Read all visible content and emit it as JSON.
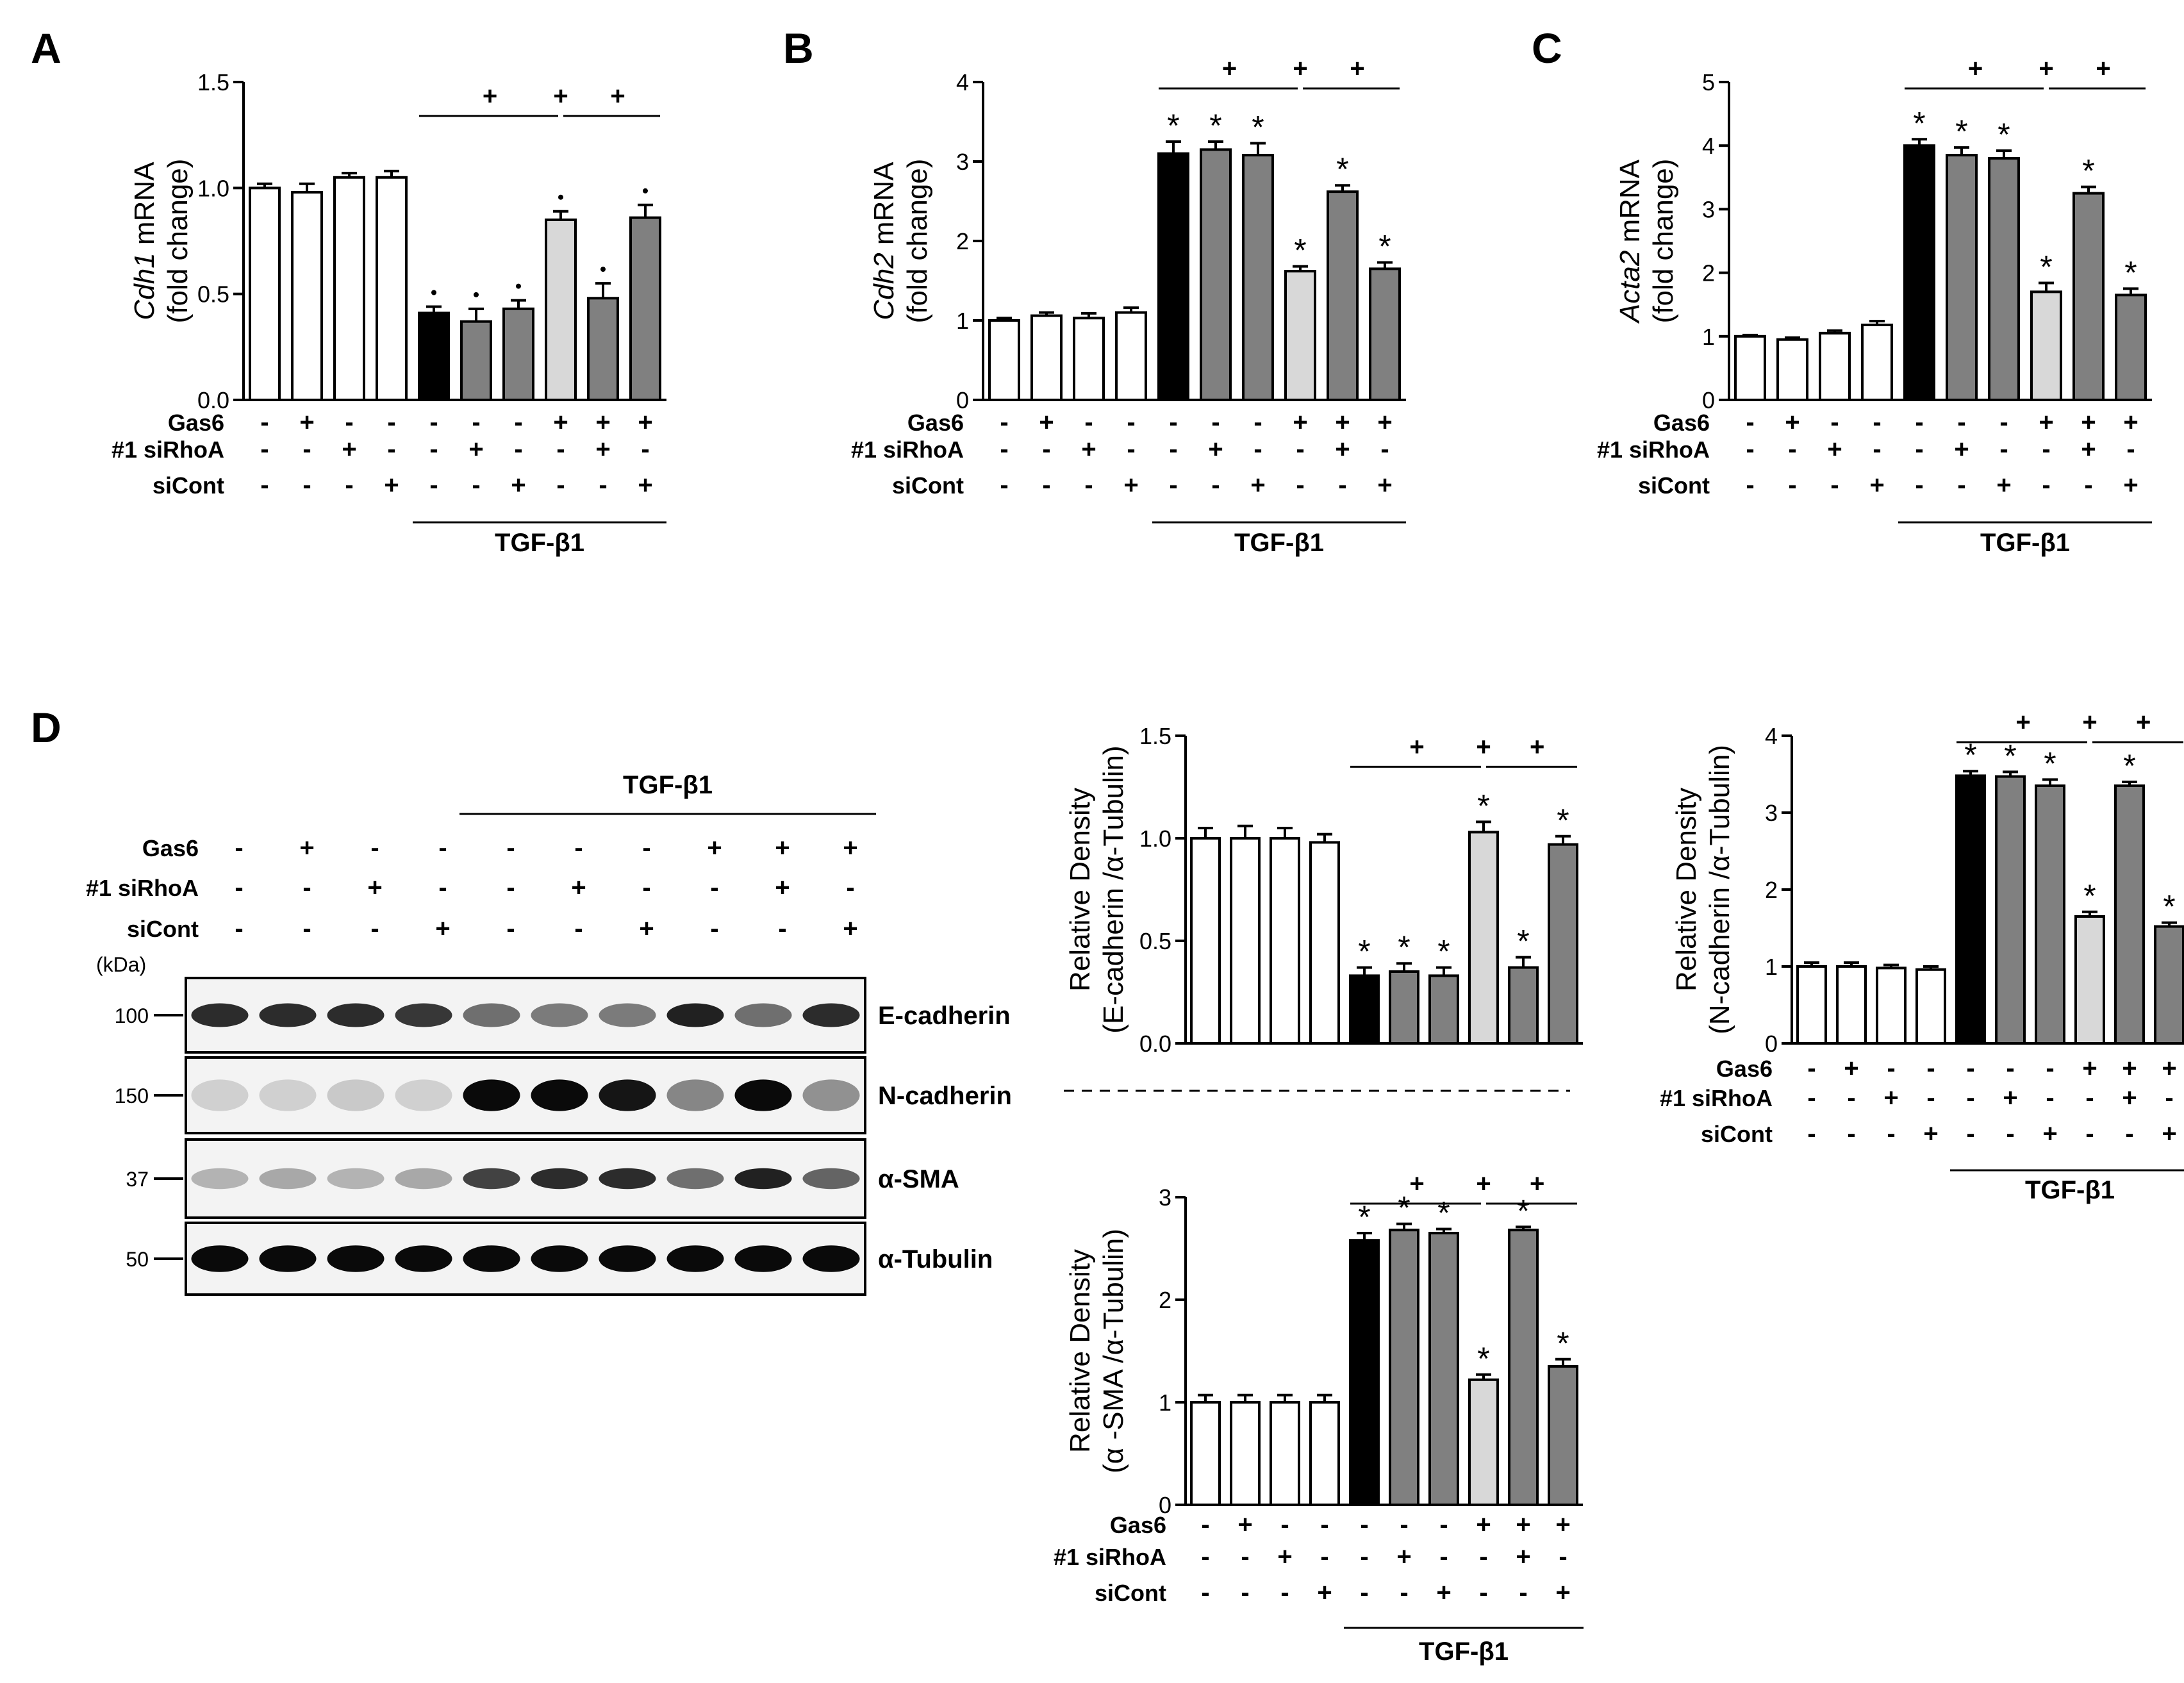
{
  "panel_labels": [
    "A",
    "B",
    "C",
    "D"
  ],
  "treatment_rows": {
    "gas6": {
      "label": "Gas6",
      "signs": [
        "-",
        "+",
        "-",
        "-",
        "-",
        "-",
        "-",
        "+",
        "+",
        "+"
      ]
    },
    "sirhoa": {
      "label": "#1 siRhoA",
      "signs": [
        "-",
        "-",
        "+",
        "-",
        "-",
        "+",
        "-",
        "-",
        "+",
        "-"
      ]
    },
    "sicont": {
      "label": "siCont",
      "signs": [
        "-",
        "-",
        "-",
        "+",
        "-",
        "-",
        "+",
        "-",
        "-",
        "+"
      ]
    },
    "tgf_label": "TGF-β1"
  },
  "bar_colors": {
    "white": "#ffffff",
    "black": "#000000",
    "light": "#d8d8d8",
    "dark": "#808080"
  },
  "bar_fills": [
    "white",
    "white",
    "white",
    "white",
    "black",
    "dark",
    "dark",
    "light",
    "dark",
    "dark"
  ],
  "comparison_marker": "+",
  "significance_marker": "*",
  "chart_data": [
    {
      "panel": "A",
      "type": "bar",
      "ylabel_gene": "Cdh1",
      "ylabel_suffix": " mRNA",
      "ylabel_line2": "(fold change)",
      "ylim": [
        0,
        1.5
      ],
      "yticks": [
        "0.0",
        "0.5",
        "1.0",
        "1.5"
      ],
      "ytick_values": [
        0,
        0.5,
        1.0,
        1.5
      ],
      "values": [
        1.0,
        0.98,
        1.05,
        1.05,
        0.41,
        0.37,
        0.43,
        0.85,
        0.48,
        0.86
      ],
      "errors": [
        0.02,
        0.04,
        0.02,
        0.03,
        0.03,
        0.06,
        0.04,
        0.04,
        0.07,
        0.06
      ],
      "stars": [
        false,
        false,
        false,
        false,
        true,
        true,
        true,
        true,
        true,
        true
      ],
      "star_style": "dot"
    },
    {
      "panel": "B",
      "type": "bar",
      "ylabel_gene": "Cdh2",
      "ylabel_suffix": "  mRNA",
      "ylabel_line2": "(fold change)",
      "ylim": [
        0,
        4
      ],
      "yticks": [
        "0",
        "1",
        "2",
        "3",
        "4"
      ],
      "ytick_values": [
        0,
        1,
        2,
        3,
        4
      ],
      "values": [
        1.0,
        1.06,
        1.03,
        1.1,
        3.1,
        3.15,
        3.08,
        1.62,
        2.62,
        1.65
      ],
      "errors": [
        0.03,
        0.04,
        0.06,
        0.06,
        0.15,
        0.1,
        0.15,
        0.06,
        0.08,
        0.08
      ],
      "stars": [
        false,
        false,
        false,
        false,
        true,
        true,
        true,
        true,
        true,
        true
      ],
      "star_style": "star"
    },
    {
      "panel": "C",
      "type": "bar",
      "ylabel_gene": "Acta2",
      "ylabel_suffix": "  mRNA",
      "ylabel_line2": "(fold change)",
      "ylim": [
        0,
        5
      ],
      "yticks": [
        "0",
        "1",
        "2",
        "3",
        "4",
        "5"
      ],
      "ytick_values": [
        0,
        1,
        2,
        3,
        4,
        5
      ],
      "values": [
        1.0,
        0.95,
        1.05,
        1.18,
        4.0,
        3.85,
        3.8,
        1.7,
        3.25,
        1.65
      ],
      "errors": [
        0.02,
        0.03,
        0.04,
        0.06,
        0.1,
        0.12,
        0.12,
        0.14,
        0.1,
        0.1
      ],
      "stars": [
        false,
        false,
        false,
        false,
        true,
        true,
        true,
        true,
        true,
        true
      ],
      "star_style": "star"
    },
    {
      "panel": "D-E-cadherin",
      "type": "bar",
      "ylabel_line1": "Relative Density",
      "ylabel_line2": "(E-cadherin /α-Tubulin)",
      "ylim": [
        0,
        1.5
      ],
      "yticks": [
        "0.0",
        "0.5",
        "1.0",
        "1.5"
      ],
      "ytick_values": [
        0,
        0.5,
        1.0,
        1.5
      ],
      "values": [
        1.0,
        1.0,
        1.0,
        0.98,
        0.33,
        0.35,
        0.33,
        1.03,
        0.37,
        0.97
      ],
      "errors": [
        0.05,
        0.06,
        0.05,
        0.04,
        0.04,
        0.04,
        0.04,
        0.05,
        0.05,
        0.04
      ],
      "stars": [
        false,
        false,
        false,
        false,
        true,
        true,
        true,
        true,
        true,
        true
      ],
      "star_style": "star"
    },
    {
      "panel": "D-N-cadherin",
      "type": "bar",
      "ylabel_line1": "Relative Density",
      "ylabel_line2": "(N-cadherin /α-Tubulin)",
      "ylim": [
        0,
        4
      ],
      "yticks": [
        "0",
        "1",
        "2",
        "3",
        "4"
      ],
      "ytick_values": [
        0,
        1,
        2,
        3,
        4
      ],
      "values": [
        1.0,
        1.0,
        0.98,
        0.96,
        3.48,
        3.47,
        3.35,
        1.65,
        3.35,
        1.52
      ],
      "errors": [
        0.05,
        0.05,
        0.04,
        0.04,
        0.06,
        0.06,
        0.08,
        0.06,
        0.05,
        0.05
      ],
      "stars": [
        false,
        false,
        false,
        false,
        true,
        true,
        true,
        true,
        true,
        true
      ],
      "star_style": "star"
    },
    {
      "panel": "D-α-SMA",
      "type": "bar",
      "ylabel_line1": "Relative Density",
      "ylabel_line2": "(α -SMA /α-Tubulin)",
      "ylim": [
        0,
        3
      ],
      "yticks": [
        "0",
        "1",
        "2",
        "3"
      ],
      "ytick_values": [
        0,
        1,
        2,
        3
      ],
      "values": [
        1.0,
        1.0,
        1.0,
        1.0,
        2.58,
        2.68,
        2.65,
        1.22,
        2.68,
        1.35
      ],
      "errors": [
        0.07,
        0.07,
        0.07,
        0.07,
        0.07,
        0.06,
        0.04,
        0.05,
        0.03,
        0.07
      ],
      "stars": [
        false,
        false,
        false,
        false,
        true,
        true,
        true,
        true,
        true,
        true
      ],
      "star_style": "star"
    }
  ],
  "western_blot": {
    "kda_label": "(kDa)",
    "lanes": 10,
    "bands": [
      {
        "name": "E-cadherin",
        "mw": "100",
        "intensities": [
          0.85,
          0.85,
          0.85,
          0.8,
          0.55,
          0.5,
          0.5,
          0.9,
          0.55,
          0.85
        ],
        "band_height": 0.25
      },
      {
        "name": "N-cadherin",
        "mw": "150",
        "intensities": [
          0.12,
          0.12,
          0.15,
          0.12,
          1.0,
          1.0,
          0.95,
          0.45,
          1.0,
          0.4
        ],
        "band_height": 0.35
      },
      {
        "name": "α-SMA",
        "mw": "37",
        "intensities": [
          0.25,
          0.3,
          0.25,
          0.3,
          0.75,
          0.85,
          0.85,
          0.55,
          0.9,
          0.6
        ],
        "band_height": 0.2
      },
      {
        "name": "α-Tubulin",
        "mw": "50",
        "intensities": [
          1.0,
          1.0,
          1.0,
          1.0,
          1.0,
          1.0,
          1.0,
          1.0,
          1.0,
          1.0
        ],
        "band_height": 0.3
      }
    ]
  }
}
